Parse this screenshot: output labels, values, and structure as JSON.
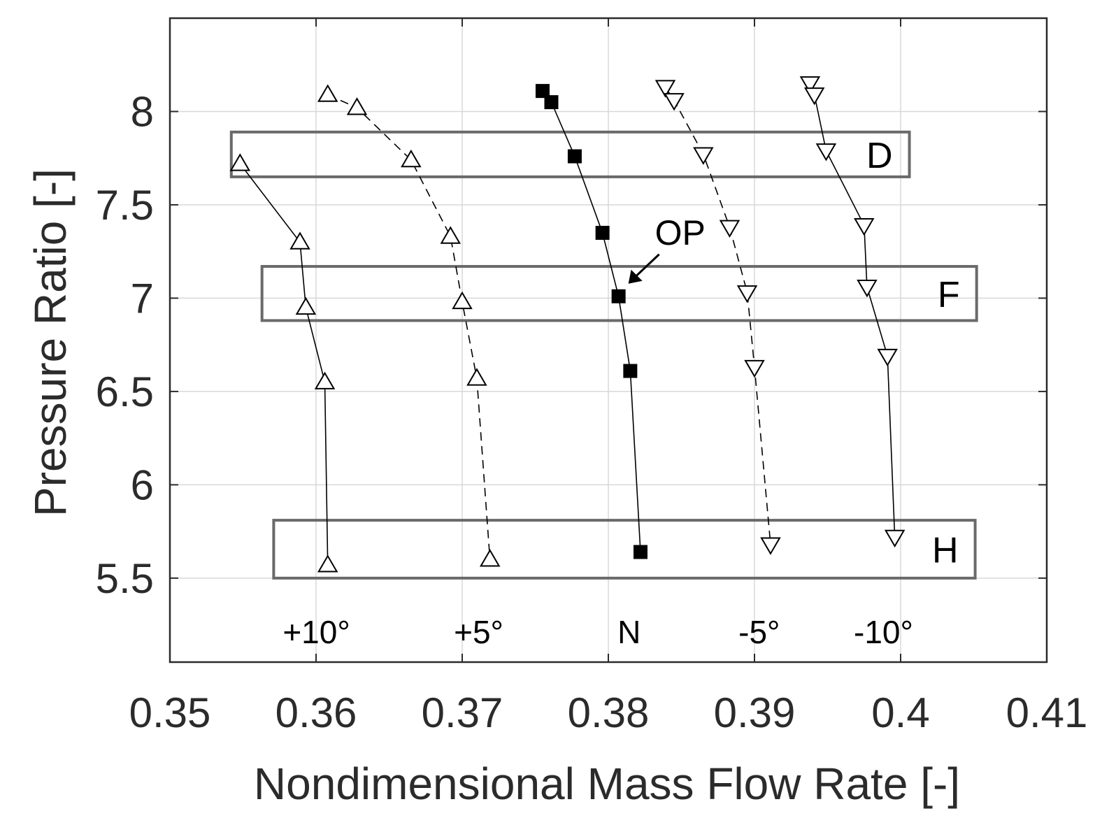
{
  "chart_data": {
    "type": "line",
    "title": "",
    "xlabel": "Nondimensional Mass Flow Rate [-]",
    "ylabel": "Pressure Ratio [-]",
    "xlim": [
      0.35,
      0.41
    ],
    "ylim": [
      5.05,
      8.5
    ],
    "xticks": [
      0.35,
      0.36,
      0.37,
      0.38,
      0.39,
      0.4,
      0.41
    ],
    "xtick_labels": [
      "0.35",
      "0.36",
      "0.37",
      "0.38",
      "0.39",
      "0.4",
      "0.41"
    ],
    "yticks": [
      5.5,
      6,
      6.5,
      7,
      7.5,
      8
    ],
    "ytick_labels": [
      "5.5",
      "6",
      "6.5",
      "7",
      "7.5",
      "8"
    ],
    "grid": true,
    "series": [
      {
        "name": "+10°",
        "marker": "triangle-up",
        "linestyle": "solid",
        "x": [
          0.3548,
          0.3589,
          0.3593,
          0.3606,
          0.3608
        ],
        "y": [
          7.72,
          7.3,
          6.95,
          6.55,
          5.57
        ]
      },
      {
        "name": "+5°",
        "marker": "triangle-up",
        "linestyle": "dashed",
        "x": [
          0.3608,
          0.3628,
          0.3665,
          0.3692,
          0.37,
          0.371,
          0.3719
        ],
        "y": [
          8.09,
          8.02,
          7.74,
          7.33,
          6.98,
          6.57,
          5.6
        ]
      },
      {
        "name": "N",
        "marker": "square-filled",
        "linestyle": "solid",
        "x": [
          0.3755,
          0.3761,
          0.3777,
          0.3796,
          0.3807,
          0.3815,
          0.3822
        ],
        "y": [
          8.11,
          8.05,
          7.76,
          7.35,
          7.01,
          6.61,
          5.64
        ]
      },
      {
        "name": "-5°",
        "marker": "triangle-down",
        "linestyle": "dashed",
        "x": [
          0.3839,
          0.3845,
          0.3865,
          0.3883,
          0.3895,
          0.39,
          0.3911
        ],
        "y": [
          8.13,
          8.06,
          7.77,
          7.38,
          7.03,
          6.63,
          5.68
        ]
      },
      {
        "name": "-10°",
        "marker": "triangle-down",
        "linestyle": "solid",
        "x": [
          0.3938,
          0.3941,
          0.3949,
          0.3975,
          0.3977,
          0.3991,
          0.3996
        ],
        "y": [
          8.15,
          8.09,
          7.79,
          7.39,
          7.06,
          6.69,
          5.72
        ]
      }
    ],
    "regions": [
      {
        "label": "D",
        "x_range": [
          0.3542,
          0.4006
        ],
        "y_range": [
          7.65,
          7.89
        ]
      },
      {
        "label": "F",
        "x_range": [
          0.3563,
          0.4052
        ],
        "y_range": [
          6.88,
          7.17
        ]
      },
      {
        "label": "H",
        "x_range": [
          0.3571,
          0.4051
        ],
        "y_range": [
          5.5,
          5.81
        ]
      }
    ],
    "series_labels": [
      "+10°",
      "+5°",
      "N",
      "-5°",
      "-10°"
    ],
    "annotations": [
      {
        "text": "OP",
        "point": [
          0.3807,
          7.01
        ]
      }
    ]
  }
}
